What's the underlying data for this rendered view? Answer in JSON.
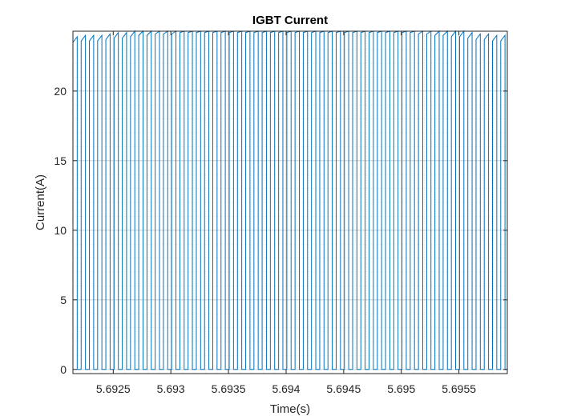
{
  "chart_data": {
    "type": "line",
    "title": "IGBT Current",
    "xlabel": "Time(s)",
    "ylabel": "Current(A)",
    "xlim": [
      5.69215,
      5.69592
    ],
    "ylim": [
      -0.3,
      24.3
    ],
    "xticks": [
      5.6925,
      5.693,
      5.6935,
      5.694,
      5.6945,
      5.695,
      5.6955
    ],
    "xtick_labels": [
      "5.6925",
      "5.693",
      "5.6935",
      "5.694",
      "5.6945",
      "5.695",
      "5.6955"
    ],
    "yticks": [
      0,
      5,
      10,
      15,
      20
    ],
    "ytick_labels": [
      "0",
      "5",
      "10",
      "15",
      "20"
    ],
    "grid": true,
    "minor_grid": true,
    "series": [
      {
        "color": "#0072BD",
        "waveform": "pulse train",
        "period": 7.14e-05,
        "duty": 0.52,
        "first_rise": 5.69215,
        "on_current_start": [
          23.5,
          23.6,
          23.6,
          23.6,
          23.7,
          23.8,
          23.8,
          23.9,
          24.0,
          24.0,
          24.1,
          24.1,
          24.1,
          24.2,
          24.2,
          24.2,
          24.2,
          24.2,
          24.2,
          24.2,
          24.2,
          24.2,
          24.2,
          24.2,
          24.2,
          24.2,
          24.2,
          24.2,
          24.2,
          24.2,
          24.2,
          24.2,
          24.2,
          24.2,
          24.2,
          24.2,
          24.2,
          24.2,
          24.2,
          24.2,
          24.2,
          24.2,
          24.1,
          24.1,
          24.0,
          24.0,
          23.9,
          23.9,
          23.8,
          23.7,
          23.7,
          23.6,
          23.6
        ],
        "on_current_end": [
          23.9,
          24.0,
          24.0,
          24.0,
          24.1,
          24.2,
          24.2,
          24.3,
          24.3,
          24.3,
          24.3,
          24.3,
          24.3,
          24.3,
          24.3,
          24.3,
          24.3,
          24.3,
          24.3,
          24.3,
          24.3,
          24.3,
          24.3,
          24.3,
          24.3,
          24.3,
          24.3,
          24.3,
          24.3,
          24.3,
          24.3,
          24.3,
          24.3,
          24.3,
          24.3,
          24.3,
          24.3,
          24.3,
          24.3,
          24.3,
          24.3,
          24.3,
          24.3,
          24.3,
          24.3,
          24.3,
          24.3,
          24.3,
          24.2,
          24.1,
          24.1,
          24.0,
          24.0
        ],
        "off_current": 0
      }
    ]
  }
}
